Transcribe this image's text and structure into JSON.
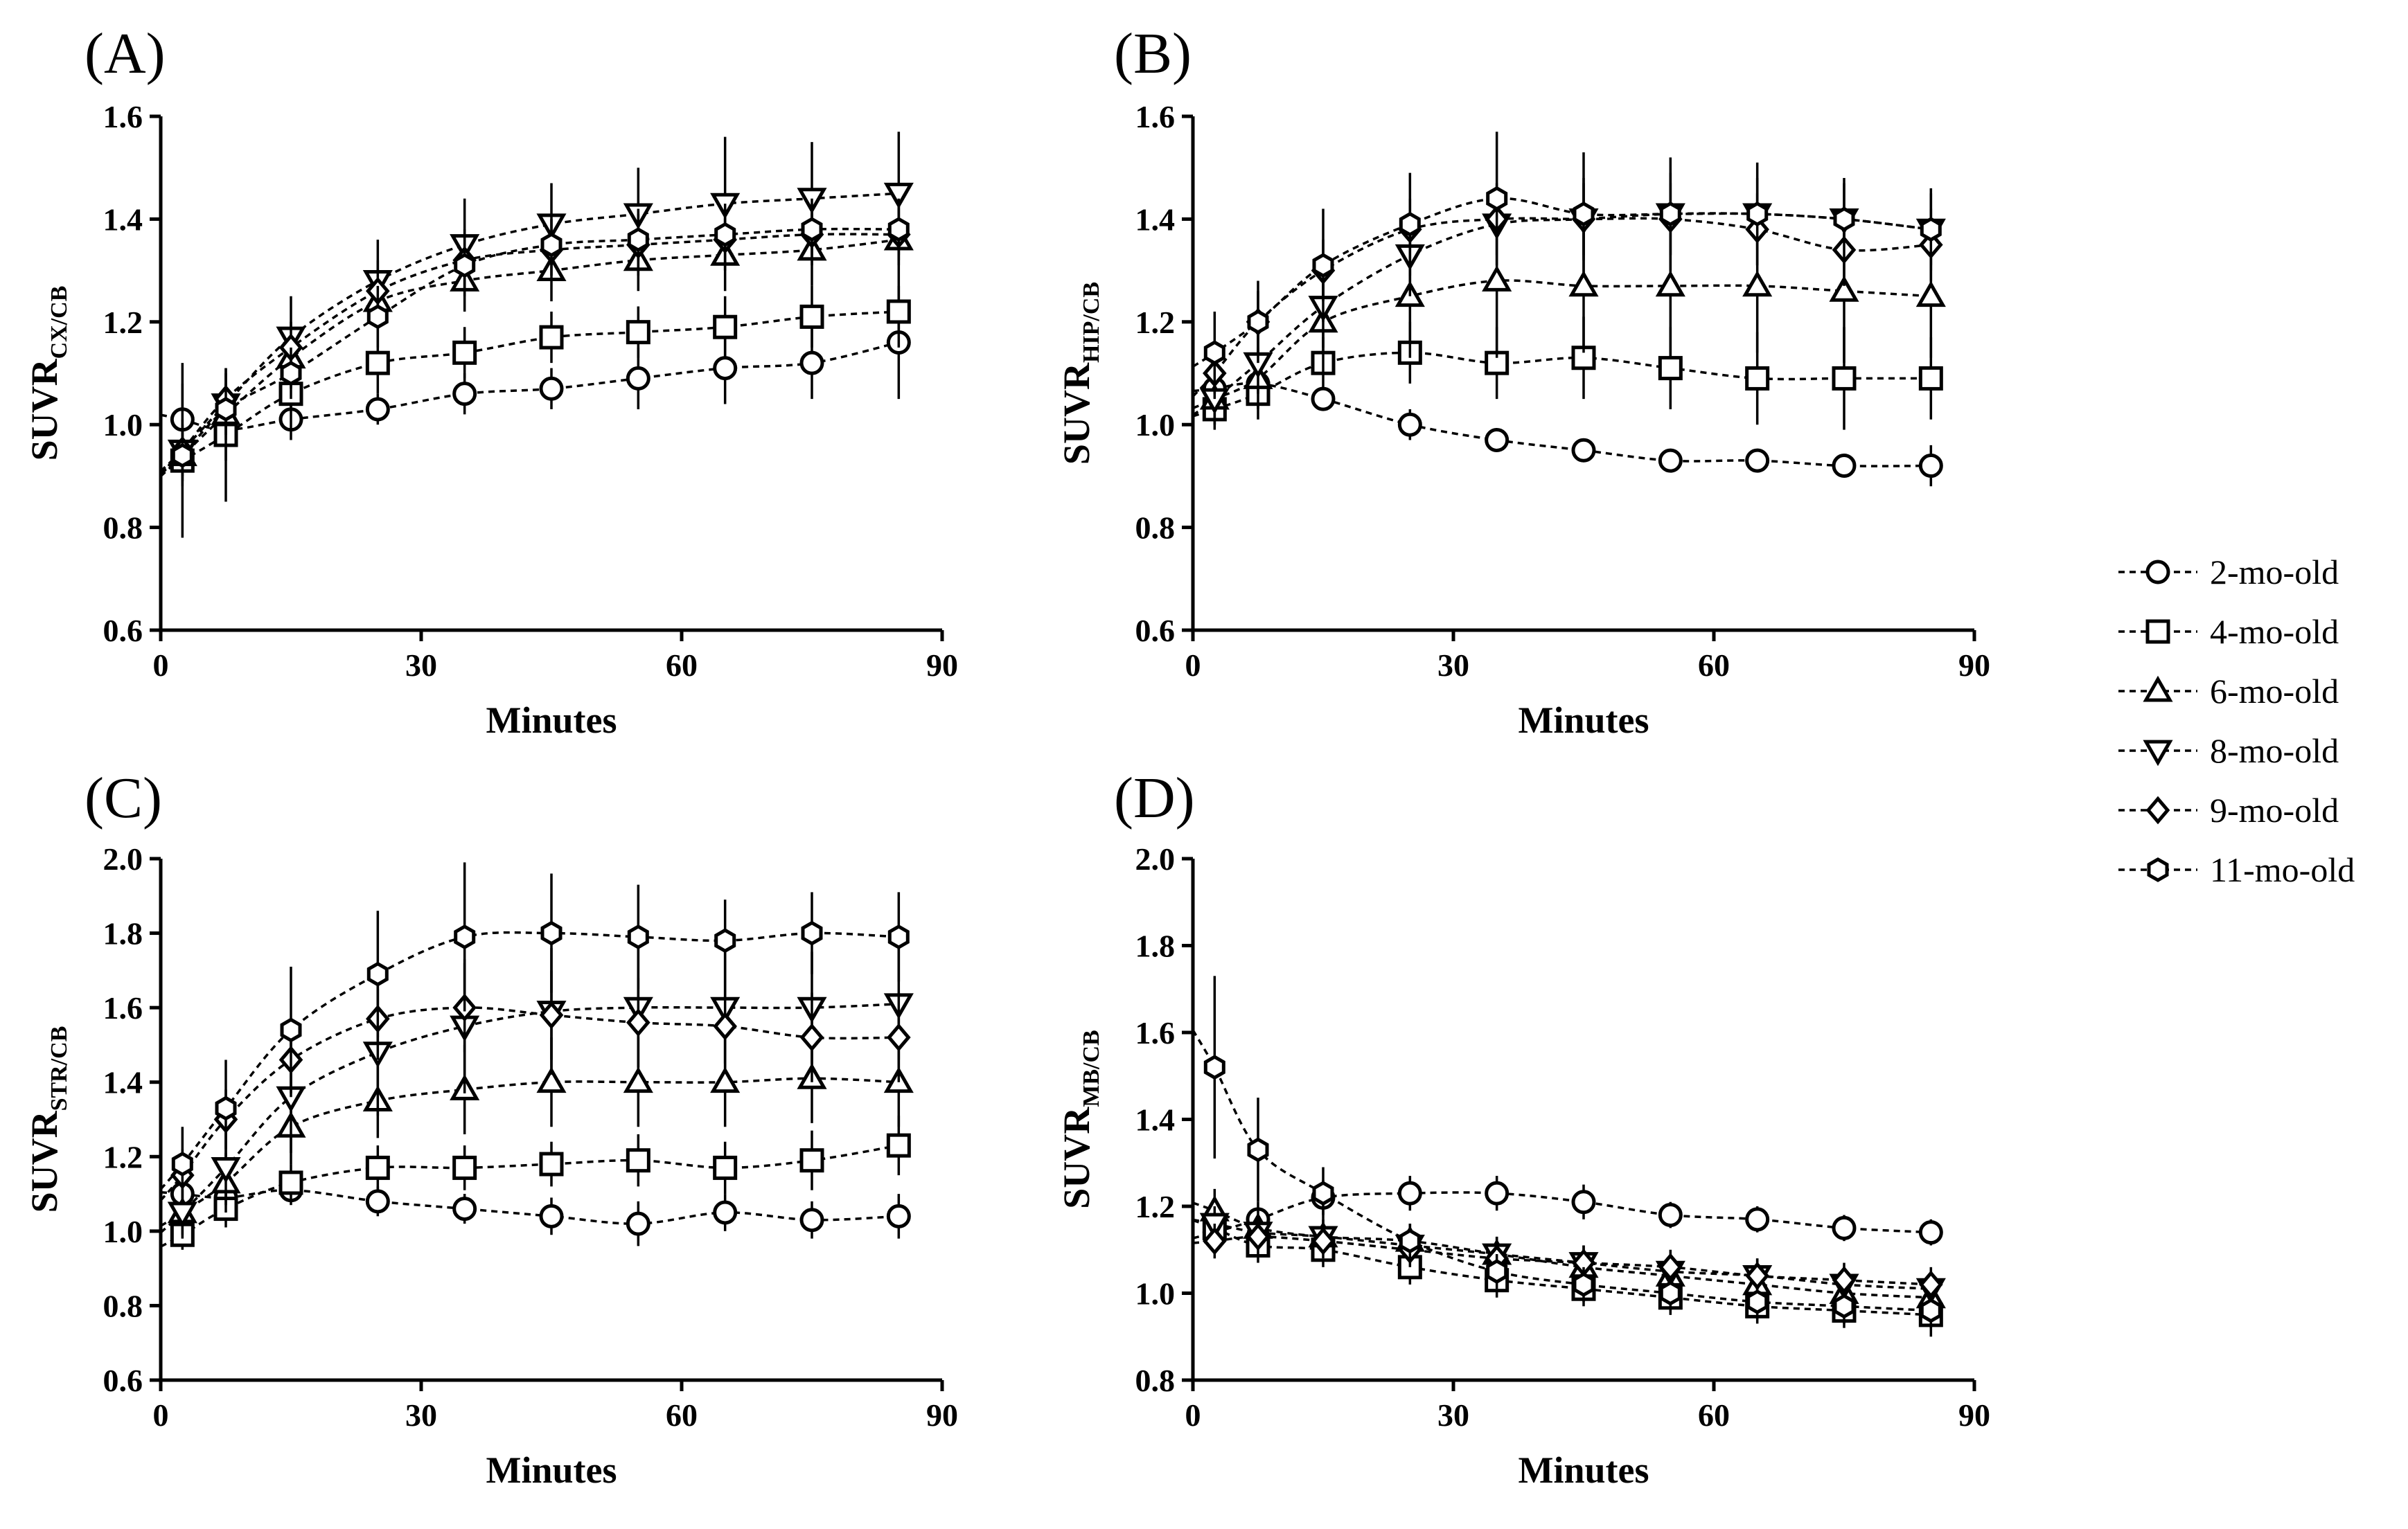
{
  "chart_data": [
    {
      "type": "line",
      "panel": "(A)",
      "xlabel": "Minutes",
      "ylabel": "SUVR",
      "ylabel_sub": "CX/CB",
      "xlim": [
        0,
        90
      ],
      "ylim": [
        0.6,
        1.6
      ],
      "xticks": [
        "0",
        "30",
        "60",
        "90"
      ],
      "yticks": [
        "0.6",
        "0.8",
        "1.0",
        "1.2",
        "1.4",
        "1.6"
      ],
      "x": [
        2.5,
        7.5,
        15,
        25,
        35,
        45,
        55,
        65,
        75,
        85
      ],
      "series": [
        {
          "name": "2-mo-old",
          "marker": "circle",
          "values": [
            1.01,
            0.99,
            1.01,
            1.03,
            1.06,
            1.07,
            1.09,
            1.11,
            1.12,
            1.16
          ],
          "errors": [
            0.11,
            0.06,
            0.04,
            0.03,
            0.04,
            0.04,
            0.06,
            0.07,
            0.07,
            0.11
          ]
        },
        {
          "name": "4-mo-old",
          "marker": "square",
          "values": [
            0.93,
            0.98,
            1.06,
            1.12,
            1.14,
            1.17,
            1.18,
            1.19,
            1.21,
            1.22
          ],
          "errors": [
            0.15,
            0.13,
            0.07,
            0.06,
            0.05,
            0.05,
            0.05,
            0.06,
            0.06,
            0.07
          ]
        },
        {
          "name": "6-mo-old",
          "marker": "triangle-up",
          "values": [
            0.94,
            1.02,
            1.13,
            1.24,
            1.28,
            1.3,
            1.32,
            1.33,
            1.34,
            1.36
          ],
          "errors": [
            0.06,
            0.06,
            0.06,
            0.06,
            0.06,
            0.06,
            0.06,
            0.07,
            0.07,
            0.07
          ]
        },
        {
          "name": "8-mo-old",
          "marker": "triangle-down",
          "values": [
            0.95,
            1.04,
            1.17,
            1.28,
            1.35,
            1.39,
            1.41,
            1.43,
            1.44,
            1.45
          ],
          "errors": [
            0.06,
            0.07,
            0.08,
            0.08,
            0.09,
            0.08,
            0.09,
            0.13,
            0.11,
            0.12
          ]
        },
        {
          "name": "9-mo-old",
          "marker": "diamond",
          "values": [
            0.95,
            1.05,
            1.15,
            1.26,
            1.32,
            1.34,
            1.35,
            1.36,
            1.37,
            1.37
          ],
          "errors": [
            0.05,
            0.05,
            0.05,
            0.06,
            0.06,
            0.06,
            0.06,
            0.06,
            0.06,
            0.06
          ]
        },
        {
          "name": "11-mo-old",
          "marker": "hexagon",
          "values": [
            0.94,
            1.03,
            1.1,
            1.21,
            1.31,
            1.35,
            1.36,
            1.37,
            1.38,
            1.38
          ],
          "errors": [
            0.05,
            0.05,
            0.05,
            0.06,
            0.06,
            0.06,
            0.06,
            0.06,
            0.06,
            0.06
          ]
        }
      ]
    },
    {
      "type": "line",
      "panel": "(B)",
      "xlabel": "Minutes",
      "ylabel": "SUVR",
      "ylabel_sub": "HIP/CB",
      "xlim": [
        0,
        90
      ],
      "ylim": [
        0.6,
        1.6
      ],
      "xticks": [
        "0",
        "30",
        "60",
        "90"
      ],
      "yticks": [
        "0.6",
        "0.8",
        "1.0",
        "1.2",
        "1.4",
        "1.6"
      ],
      "x": [
        2.5,
        7.5,
        15,
        25,
        35,
        45,
        55,
        65,
        75,
        85
      ],
      "series": [
        {
          "name": "2-mo-old",
          "marker": "circle",
          "values": [
            1.07,
            1.08,
            1.05,
            1.0,
            0.97,
            0.95,
            0.93,
            0.93,
            0.92,
            0.92
          ],
          "errors": [
            0.04,
            0.03,
            0.02,
            0.03,
            0.02,
            0.02,
            0.02,
            0.02,
            0.02,
            0.04
          ]
        },
        {
          "name": "4-mo-old",
          "marker": "square",
          "values": [
            1.03,
            1.06,
            1.12,
            1.14,
            1.12,
            1.13,
            1.11,
            1.09,
            1.09,
            1.09
          ],
          "errors": [
            0.04,
            0.05,
            0.05,
            0.06,
            0.07,
            0.08,
            0.08,
            0.09,
            0.1,
            0.08
          ]
        },
        {
          "name": "6-mo-old",
          "marker": "triangle-up",
          "values": [
            1.05,
            1.09,
            1.2,
            1.25,
            1.28,
            1.27,
            1.27,
            1.27,
            1.26,
            1.25
          ],
          "errors": [
            0.05,
            0.06,
            0.1,
            0.12,
            0.15,
            0.13,
            0.14,
            0.13,
            0.14,
            0.12
          ]
        },
        {
          "name": "8-mo-old",
          "marker": "triangle-down",
          "values": [
            1.05,
            1.12,
            1.23,
            1.33,
            1.39,
            1.4,
            1.41,
            1.41,
            1.4,
            1.38
          ],
          "errors": [
            0.05,
            0.06,
            0.08,
            0.08,
            0.08,
            0.08,
            0.08,
            0.07,
            0.07,
            0.07
          ]
        },
        {
          "name": "9-mo-old",
          "marker": "diamond",
          "values": [
            1.1,
            1.2,
            1.3,
            1.38,
            1.4,
            1.4,
            1.4,
            1.38,
            1.34,
            1.35
          ],
          "errors": [
            0.05,
            0.06,
            0.06,
            0.06,
            0.07,
            0.07,
            0.07,
            0.07,
            0.07,
            0.07
          ]
        },
        {
          "name": "11-mo-old",
          "marker": "hexagon",
          "values": [
            1.14,
            1.2,
            1.31,
            1.39,
            1.44,
            1.41,
            1.41,
            1.41,
            1.4,
            1.38
          ],
          "errors": [
            0.08,
            0.08,
            0.11,
            0.1,
            0.13,
            0.12,
            0.11,
            0.1,
            0.08,
            0.08
          ]
        }
      ]
    },
    {
      "type": "line",
      "panel": "(C)",
      "xlabel": "Minutes",
      "ylabel": "SUVR",
      "ylabel_sub": "STR/CB",
      "xlim": [
        0,
        90
      ],
      "ylim": [
        0.6,
        2.0
      ],
      "xticks": [
        "0",
        "30",
        "60",
        "90"
      ],
      "yticks": [
        "0.6",
        "0.8",
        "1.0",
        "1.2",
        "1.4",
        "1.6",
        "1.8",
        "2.0"
      ],
      "x": [
        2.5,
        7.5,
        15,
        25,
        35,
        45,
        55,
        65,
        75,
        85
      ],
      "series": [
        {
          "name": "2-mo-old",
          "marker": "circle",
          "values": [
            1.1,
            1.09,
            1.11,
            1.08,
            1.06,
            1.04,
            1.02,
            1.05,
            1.03,
            1.04
          ],
          "errors": [
            0.05,
            0.04,
            0.04,
            0.04,
            0.04,
            0.05,
            0.06,
            0.05,
            0.05,
            0.06
          ]
        },
        {
          "name": "4-mo-old",
          "marker": "square",
          "values": [
            0.99,
            1.06,
            1.13,
            1.17,
            1.17,
            1.18,
            1.19,
            1.17,
            1.19,
            1.23
          ],
          "errors": [
            0.04,
            0.05,
            0.05,
            0.06,
            0.06,
            0.06,
            0.07,
            0.07,
            0.08,
            0.08
          ]
        },
        {
          "name": "6-mo-old",
          "marker": "triangle-up",
          "values": [
            1.05,
            1.13,
            1.28,
            1.35,
            1.38,
            1.4,
            1.4,
            1.4,
            1.41,
            1.4
          ],
          "errors": [
            0.06,
            0.08,
            0.1,
            0.1,
            0.12,
            0.12,
            0.12,
            0.12,
            0.12,
            0.12
          ]
        },
        {
          "name": "8-mo-old",
          "marker": "triangle-down",
          "values": [
            1.05,
            1.17,
            1.36,
            1.48,
            1.55,
            1.59,
            1.6,
            1.6,
            1.6,
            1.61
          ],
          "errors": [
            0.07,
            0.1,
            0.15,
            0.17,
            0.18,
            0.17,
            0.16,
            0.15,
            0.15,
            0.15
          ]
        },
        {
          "name": "9-mo-old",
          "marker": "diamond",
          "values": [
            1.15,
            1.3,
            1.46,
            1.57,
            1.6,
            1.58,
            1.56,
            1.55,
            1.52,
            1.52
          ],
          "errors": [
            0.07,
            0.08,
            0.1,
            0.11,
            0.12,
            0.12,
            0.12,
            0.12,
            0.12,
            0.12
          ]
        },
        {
          "name": "11-mo-old",
          "marker": "hexagon",
          "values": [
            1.18,
            1.33,
            1.54,
            1.69,
            1.79,
            1.8,
            1.79,
            1.78,
            1.8,
            1.79
          ],
          "errors": [
            0.1,
            0.13,
            0.17,
            0.17,
            0.2,
            0.16,
            0.14,
            0.11,
            0.11,
            0.12
          ]
        }
      ]
    },
    {
      "type": "line",
      "panel": "(D)",
      "xlabel": "Minutes",
      "ylabel": "SUVR",
      "ylabel_sub": "MB/CB",
      "xlim": [
        0,
        90
      ],
      "ylim": [
        0.8,
        2.0
      ],
      "xticks": [
        "0",
        "30",
        "60",
        "90"
      ],
      "yticks": [
        "0.8",
        "1.0",
        "1.2",
        "1.4",
        "1.6",
        "1.8",
        "2.0"
      ],
      "x": [
        2.5,
        7.5,
        15,
        25,
        35,
        45,
        55,
        65,
        75,
        85
      ],
      "series": [
        {
          "name": "2-mo-old",
          "marker": "circle",
          "values": [
            1.14,
            1.17,
            1.22,
            1.23,
            1.23,
            1.21,
            1.18,
            1.17,
            1.15,
            1.14
          ],
          "errors": [
            0.04,
            0.04,
            0.04,
            0.04,
            0.04,
            0.04,
            0.03,
            0.03,
            0.03,
            0.03
          ]
        },
        {
          "name": "4-mo-old",
          "marker": "square",
          "values": [
            1.15,
            1.11,
            1.1,
            1.06,
            1.03,
            1.01,
            0.99,
            0.97,
            0.96,
            0.95
          ],
          "errors": [
            0.04,
            0.04,
            0.04,
            0.04,
            0.04,
            0.04,
            0.04,
            0.04,
            0.04,
            0.05
          ]
        },
        {
          "name": "6-mo-old",
          "marker": "triangle-up",
          "values": [
            1.19,
            1.15,
            1.13,
            1.12,
            1.09,
            1.06,
            1.04,
            1.02,
            1.0,
            0.99
          ],
          "errors": [
            0.05,
            0.04,
            0.04,
            0.04,
            0.04,
            0.04,
            0.04,
            0.04,
            0.04,
            0.04
          ]
        },
        {
          "name": "8-mo-old",
          "marker": "triangle-down",
          "values": [
            1.16,
            1.14,
            1.13,
            1.11,
            1.09,
            1.07,
            1.05,
            1.04,
            1.02,
            1.01
          ],
          "errors": [
            0.04,
            0.04,
            0.04,
            0.04,
            0.04,
            0.04,
            0.04,
            0.04,
            0.04,
            0.04
          ]
        },
        {
          "name": "9-mo-old",
          "marker": "diamond",
          "values": [
            1.12,
            1.13,
            1.12,
            1.1,
            1.08,
            1.07,
            1.06,
            1.04,
            1.03,
            1.02
          ],
          "errors": [
            0.04,
            0.04,
            0.04,
            0.04,
            0.04,
            0.04,
            0.04,
            0.04,
            0.04,
            0.04
          ]
        },
        {
          "name": "11-mo-old",
          "marker": "hexagon",
          "values": [
            1.52,
            1.33,
            1.23,
            1.12,
            1.05,
            1.02,
            1.0,
            0.98,
            0.97,
            0.96
          ],
          "errors": [
            0.21,
            0.12,
            0.06,
            0.04,
            0.04,
            0.04,
            0.04,
            0.04,
            0.04,
            0.04
          ]
        }
      ]
    }
  ],
  "legend": {
    "placement": "right",
    "items": [
      {
        "label": "2-mo-old",
        "marker": "circle"
      },
      {
        "label": "4-mo-old",
        "marker": "square"
      },
      {
        "label": "6-mo-old",
        "marker": "triangle-up"
      },
      {
        "label": "8-mo-old",
        "marker": "triangle-down"
      },
      {
        "label": "9-mo-old",
        "marker": "diamond"
      },
      {
        "label": "11-mo-old",
        "marker": "hexagon"
      }
    ]
  },
  "colors": {
    "ink": "#000000",
    "background": "#ffffff"
  }
}
